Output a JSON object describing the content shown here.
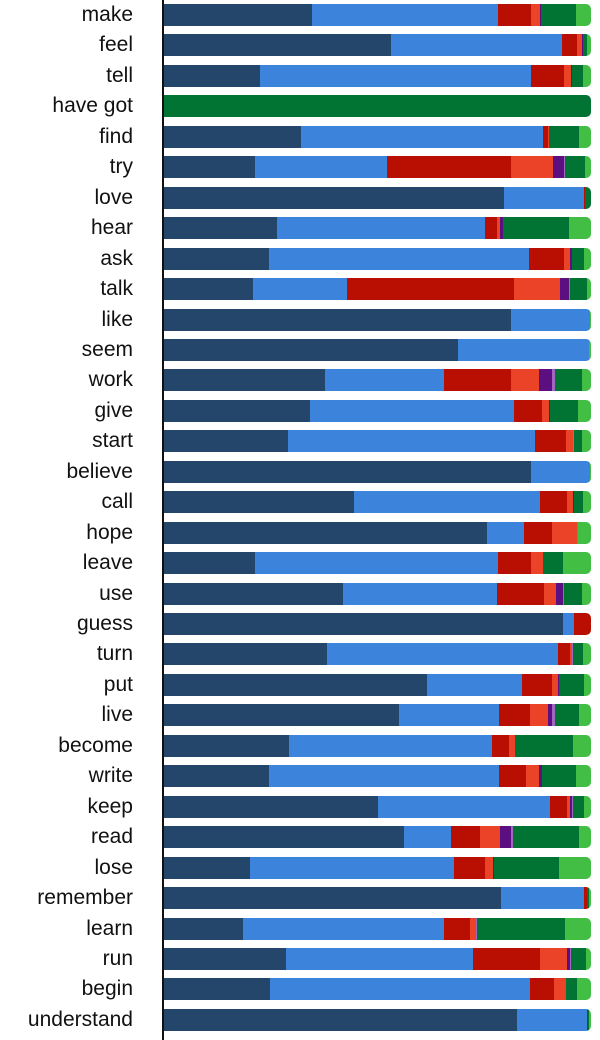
{
  "chart_data": {
    "type": "bar",
    "orientation": "horizontal",
    "stacked": true,
    "normalized": true,
    "title": "",
    "xlabel": "",
    "ylabel": "",
    "xlim": [
      0,
      100
    ],
    "grid": false,
    "legend": "none",
    "series_colors": {
      "s1": "#24466b",
      "s2": "#3b83db",
      "s3": "#b90f02",
      "s4": "#ea4328",
      "s5": "#5c0f81",
      "s6": "#a167c0",
      "s7": "#017333",
      "s8": "#42be45"
    },
    "series_order": [
      "s1",
      "s2",
      "s3",
      "s4",
      "s5",
      "s6",
      "s7",
      "s8"
    ],
    "categories": [
      "make",
      "feel",
      "tell",
      "have got",
      "find",
      "try",
      "love",
      "hear",
      "ask",
      "talk",
      "like",
      "seem",
      "work",
      "give",
      "start",
      "believe",
      "call",
      "hope",
      "leave",
      "use",
      "guess",
      "turn",
      "put",
      "live",
      "become",
      "write",
      "keep",
      "read",
      "lose",
      "remember",
      "learn",
      "run",
      "begin",
      "understand"
    ],
    "series": [
      {
        "name": "s1",
        "values": [
          34.7,
          53.0,
          22.5,
          0,
          32.1,
          21.3,
          79.6,
          26.5,
          24.6,
          20.8,
          81.3,
          68.9,
          37.7,
          34.2,
          29.0,
          85.9,
          44.7,
          75.6,
          21.3,
          41.9,
          93.4,
          38.2,
          61.6,
          55.0,
          29.3,
          24.6,
          50.1,
          56.2,
          20.1,
          79.0,
          18.5,
          28.6,
          24.8,
          82.7
        ]
      },
      {
        "name": "s2",
        "values": [
          43.6,
          40.0,
          63.5,
          0,
          56.7,
          30.9,
          18.7,
          48.7,
          60.9,
          22.0,
          18.5,
          30.7,
          27.9,
          47.8,
          57.8,
          13.8,
          43.8,
          8.7,
          56.9,
          36.1,
          2.6,
          54.3,
          22.2,
          23.4,
          47.5,
          53.9,
          40.3,
          11.2,
          47.8,
          19.4,
          47.1,
          43.8,
          60.9,
          16.4
        ]
      },
      {
        "name": "s3",
        "values": [
          7.7,
          3.7,
          7.7,
          0,
          1.2,
          29.0,
          0.2,
          2.8,
          8.2,
          39.1,
          0,
          0,
          15.9,
          6.6,
          7.3,
          0,
          6.3,
          6.6,
          7.7,
          11.0,
          4.0,
          2.8,
          7.0,
          7.3,
          4.0,
          6.3,
          4.0,
          6.6,
          7.3,
          0.7,
          6.1,
          15.7,
          5.6,
          0.2
        ]
      },
      {
        "name": "s4",
        "values": [
          2.1,
          1.2,
          1.6,
          0,
          0.2,
          9.8,
          0,
          0.7,
          1.4,
          10.8,
          0,
          0,
          6.6,
          1.6,
          1.6,
          0,
          1.4,
          5.9,
          2.8,
          2.8,
          0,
          0.5,
          1.4,
          4.2,
          1.4,
          3.0,
          0.7,
          4.7,
          1.9,
          0,
          1.4,
          6.3,
          2.8,
          0
        ]
      },
      {
        "name": "s5",
        "values": [
          0.2,
          0.2,
          0.2,
          0,
          0,
          2.6,
          0,
          0.7,
          0.5,
          2.1,
          0,
          0,
          3.0,
          0.2,
          0,
          0,
          0.2,
          0,
          0,
          1.6,
          0,
          0,
          0.2,
          0.9,
          0,
          0.7,
          0.5,
          2.6,
          0.2,
          0,
          0,
          0.7,
          0,
          0
        ]
      },
      {
        "name": "s6",
        "values": [
          0,
          0,
          0,
          0,
          0,
          0.2,
          0,
          0,
          0,
          0.2,
          0,
          0,
          0.7,
          0,
          0.2,
          0,
          0,
          0.2,
          0,
          0.2,
          0,
          0.2,
          0,
          0.7,
          0,
          0,
          0.2,
          0.5,
          0,
          0,
          0.2,
          0.2,
          0,
          0
        ]
      },
      {
        "name": "s7",
        "values": [
          8.2,
          0.9,
          2.6,
          100,
          7.0,
          4.7,
          1.4,
          15.5,
          2.8,
          4.0,
          0,
          0,
          6.3,
          6.6,
          1.9,
          0,
          2.1,
          0,
          4.7,
          4.2,
          0,
          2.3,
          5.9,
          5.6,
          13.6,
          8.0,
          2.6,
          15.5,
          15.2,
          0.5,
          20.6,
          3.5,
          2.6,
          0.2
        ]
      },
      {
        "name": "s8",
        "values": [
          3.5,
          0.9,
          1.9,
          0,
          2.8,
          1.4,
          0,
          5.2,
          1.6,
          0.9,
          0.2,
          0.5,
          2.1,
          3.0,
          2.1,
          0.2,
          1.9,
          3.0,
          6.6,
          2.1,
          0,
          1.9,
          1.6,
          2.8,
          4.2,
          3.5,
          1.6,
          2.8,
          7.5,
          0.5,
          6.1,
          1.2,
          3.3,
          0.5
        ]
      }
    ]
  }
}
